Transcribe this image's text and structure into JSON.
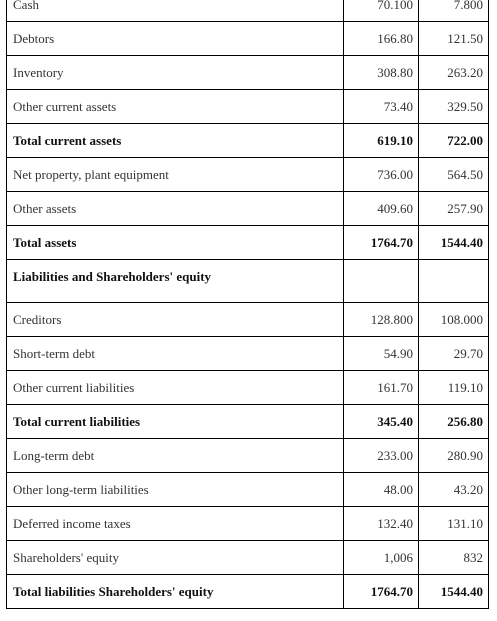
{
  "table": {
    "rows": [
      {
        "label": "Cash",
        "v1": "70.100",
        "v2": "7.800",
        "bold": false
      },
      {
        "label": "Debtors",
        "v1": "166.80",
        "v2": "121.50",
        "bold": false
      },
      {
        "label": "Inventory",
        "v1": "308.80",
        "v2": "263.20",
        "bold": false
      },
      {
        "label": "Other current assets",
        "v1": "73.40",
        "v2": "329.50",
        "bold": false
      },
      {
        "label": "Total current assets",
        "v1": "619.10",
        "v2": "722.00",
        "bold": true
      },
      {
        "label": "Net property, plant equipment",
        "v1": "736.00",
        "v2": "564.50",
        "bold": false
      },
      {
        "label": "Other assets",
        "v1": "409.60",
        "v2": "257.90",
        "bold": false
      },
      {
        "label": "Total assets",
        "v1": "1764.70",
        "v2": "1544.40",
        "bold": true
      },
      {
        "label": "Liabilities  and Shareholders' equity",
        "v1": "",
        "v2": "",
        "bold": true,
        "section": true
      },
      {
        "label": "Creditors",
        "v1": "128.800",
        "v2": "108.000",
        "bold": false
      },
      {
        "label": "Short-term debt",
        "v1": "54.90",
        "v2": "29.70",
        "bold": false
      },
      {
        "label": "Other current liabilities",
        "v1": "161.70",
        "v2": "119.10",
        "bold": false
      },
      {
        "label": "Total current liabilities",
        "v1": "345.40",
        "v2": "256.80",
        "bold": true
      },
      {
        "label": "Long-term debt",
        "v1": "233.00",
        "v2": "280.90",
        "bold": false
      },
      {
        "label": "Other long-term liabilities",
        "v1": "48.00",
        "v2": "43.20",
        "bold": false
      },
      {
        "label": "Deferred income taxes",
        "v1": "132.40",
        "v2": "131.10",
        "bold": false
      },
      {
        "label": "Shareholders' equity",
        "v1": "1,006",
        "v2": "832",
        "bold": false
      },
      {
        "label": "Total liabilities Shareholders' equity",
        "v1": "1764.70",
        "v2": "1544.40",
        "bold": true
      }
    ]
  }
}
